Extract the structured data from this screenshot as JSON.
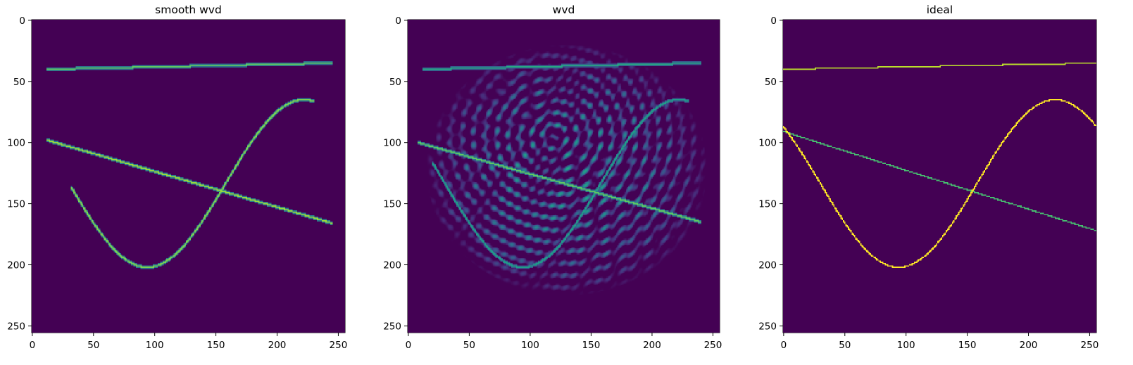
{
  "chart_data": [
    {
      "type": "heatmap",
      "title": "smooth wvd",
      "xlim": [
        0,
        255
      ],
      "ylim": [
        255,
        0
      ],
      "xticks": [
        0,
        50,
        100,
        150,
        200,
        250
      ],
      "yticks": [
        0,
        50,
        100,
        150,
        200,
        250
      ],
      "colormap": "viridis",
      "series": [
        {
          "kind": "line",
          "x0": 12,
          "y0": 40,
          "x1": 245,
          "y1": 35,
          "intensity": 0.75
        },
        {
          "kind": "line",
          "x0": 12,
          "y0": 98,
          "x1": 245,
          "y1": 166,
          "intensity": 0.85
        },
        {
          "kind": "sine",
          "x_from": 32,
          "x_to": 230,
          "center": 133.5,
          "amplitude": 68.5,
          "period": 256,
          "phase_x": 94,
          "intensity": 0.8
        }
      ]
    },
    {
      "type": "heatmap",
      "title": "wvd",
      "xlim": [
        0,
        255
      ],
      "ylim": [
        255,
        0
      ],
      "xticks": [
        0,
        50,
        100,
        150,
        200,
        250
      ],
      "yticks": [
        0,
        50,
        100,
        150,
        200,
        250
      ],
      "colormap": "viridis",
      "series": [
        {
          "kind": "line",
          "x0": 12,
          "y0": 40,
          "x1": 240,
          "y1": 35,
          "intensity": 0.6
        },
        {
          "kind": "line",
          "x0": 8,
          "y0": 100,
          "x1": 240,
          "y1": 165,
          "intensity": 0.75
        },
        {
          "kind": "sine",
          "x_from": 20,
          "x_to": 230,
          "center": 133.5,
          "amplitude": 68.5,
          "period": 256,
          "phase_x": 94,
          "intensity": 0.55
        },
        {
          "kind": "interference",
          "x_from": 15,
          "x_to": 245,
          "y_from": 20,
          "y_to": 225,
          "intensity": 0.55
        }
      ]
    },
    {
      "type": "heatmap",
      "title": "ideal",
      "xlim": [
        0,
        255
      ],
      "ylim": [
        255,
        0
      ],
      "xticks": [
        0,
        50,
        100,
        150,
        200,
        250
      ],
      "yticks": [
        0,
        50,
        100,
        150,
        200,
        250
      ],
      "colormap": "viridis",
      "series": [
        {
          "kind": "line",
          "x0": 0,
          "y0": 40,
          "x1": 255,
          "y1": 35,
          "intensity": 0.9
        },
        {
          "kind": "line",
          "x0": 0,
          "y0": 91,
          "x1": 255,
          "y1": 172,
          "intensity": 0.7
        },
        {
          "kind": "sine",
          "x_from": 0,
          "x_to": 255,
          "center": 133.5,
          "amplitude": 68.5,
          "period": 256,
          "phase_x": 94,
          "intensity": 1.0
        }
      ]
    }
  ]
}
